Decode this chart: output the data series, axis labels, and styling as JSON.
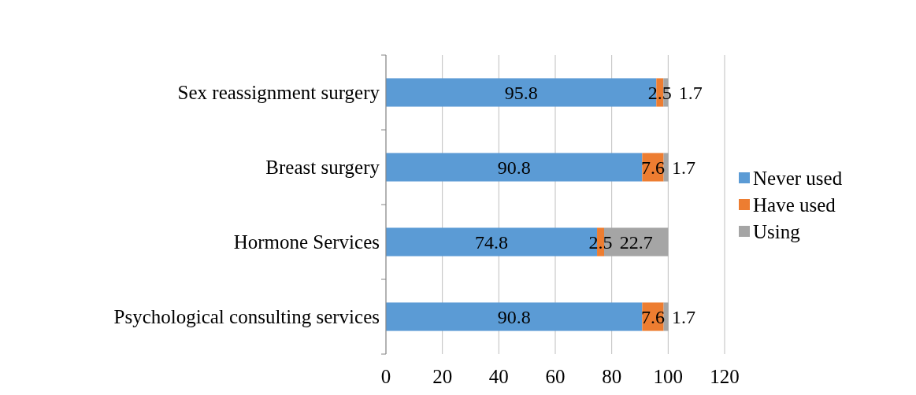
{
  "chart_data": {
    "type": "bar",
    "orientation": "horizontal",
    "stacked": true,
    "categories": [
      "Sex reassignment surgery",
      "Breast surgery",
      "Hormone Services",
      "Psychological consulting services"
    ],
    "series": [
      {
        "name": "Never used",
        "color": "#5b9bd5",
        "values": [
          95.8,
          90.8,
          74.8,
          90.8
        ]
      },
      {
        "name": "Have used",
        "color": "#ed7d31",
        "values": [
          2.5,
          7.6,
          2.5,
          7.6
        ]
      },
      {
        "name": "Using",
        "color": "#a5a5a5",
        "values": [
          1.7,
          1.7,
          22.7,
          1.7
        ]
      }
    ],
    "xlim": [
      0,
      120
    ],
    "xticks": [
      0,
      20,
      40,
      60,
      80,
      100,
      120
    ],
    "grid": "x",
    "legend": "right",
    "data_labels": true
  }
}
